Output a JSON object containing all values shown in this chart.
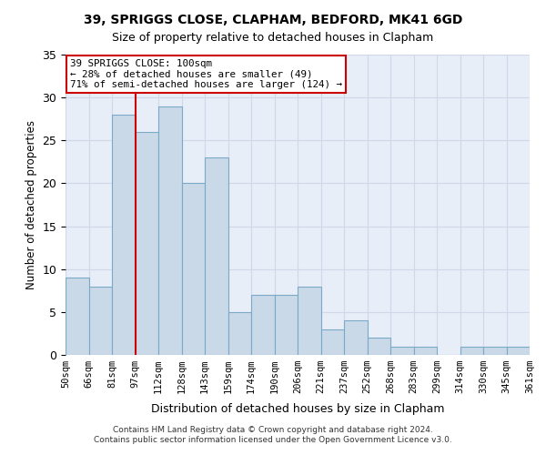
{
  "title_line1": "39, SPRIGGS CLOSE, CLAPHAM, BEDFORD, MK41 6GD",
  "title_line2": "Size of property relative to detached houses in Clapham",
  "xlabel": "Distribution of detached houses by size in Clapham",
  "ylabel": "Number of detached properties",
  "bin_labels": [
    "50sqm",
    "66sqm",
    "81sqm",
    "97sqm",
    "112sqm",
    "128sqm",
    "143sqm",
    "159sqm",
    "174sqm",
    "190sqm",
    "206sqm",
    "221sqm",
    "237sqm",
    "252sqm",
    "268sqm",
    "283sqm",
    "299sqm",
    "314sqm",
    "330sqm",
    "345sqm",
    "361sqm"
  ],
  "bar_values": [
    9,
    8,
    28,
    26,
    29,
    20,
    23,
    5,
    7,
    7,
    8,
    3,
    4,
    2,
    1,
    1,
    0,
    1,
    1,
    1
  ],
  "bar_color": "#c9d9e8",
  "bar_edge_color": "#7aaac8",
  "vline_x": 3,
  "vline_color": "#cc0000",
  "annotation_text": "39 SPRIGGS CLOSE: 100sqm\n← 28% of detached houses are smaller (49)\n71% of semi-detached houses are larger (124) →",
  "annotation_box_color": "#ffffff",
  "annotation_box_edge": "#cc0000",
  "ylim": [
    0,
    35
  ],
  "yticks": [
    0,
    5,
    10,
    15,
    20,
    25,
    30,
    35
  ],
  "grid_color": "#d0d8e8",
  "bg_color": "#e8eef8",
  "footer_line1": "Contains HM Land Registry data © Crown copyright and database right 2024.",
  "footer_line2": "Contains public sector information licensed under the Open Government Licence v3.0."
}
